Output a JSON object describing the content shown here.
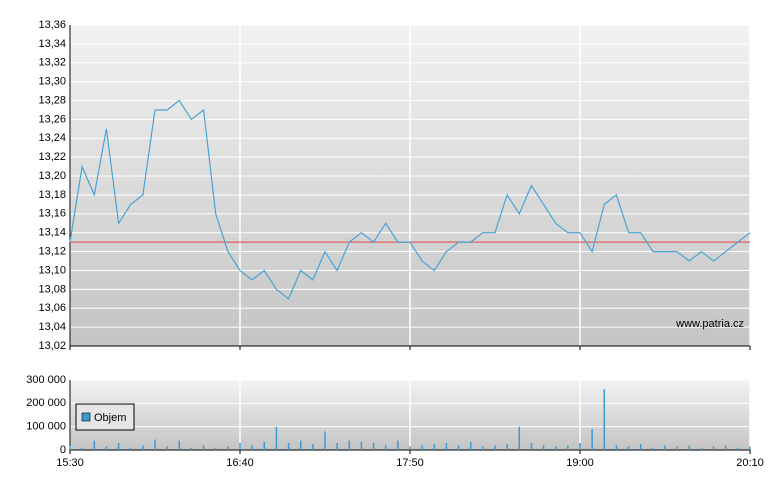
{
  "chart_data": [
    {
      "type": "line",
      "color": "#4aa3d4",
      "reference_value": 13.13,
      "reference_color": "#e06060",
      "annotation": "www.patria.cz",
      "x": [
        "15:30",
        "15:35",
        "15:40",
        "15:45",
        "15:50",
        "15:55",
        "16:00",
        "16:05",
        "16:10",
        "16:15",
        "16:20",
        "16:25",
        "16:30",
        "16:35",
        "16:40",
        "16:45",
        "16:50",
        "16:55",
        "17:00",
        "17:05",
        "17:10",
        "17:15",
        "17:20",
        "17:25",
        "17:30",
        "17:35",
        "17:40",
        "17:45",
        "17:50",
        "17:55",
        "18:00",
        "18:05",
        "18:10",
        "18:15",
        "18:20",
        "18:25",
        "18:30",
        "18:35",
        "18:40",
        "18:45",
        "18:50",
        "18:55",
        "19:00",
        "19:05",
        "19:10",
        "19:15",
        "19:20",
        "19:25",
        "19:30",
        "19:35",
        "19:40",
        "19:45",
        "19:50",
        "19:55",
        "20:00",
        "20:05",
        "20:10"
      ],
      "values": [
        13.13,
        13.21,
        13.18,
        13.25,
        13.15,
        13.17,
        13.18,
        13.27,
        13.27,
        13.28,
        13.26,
        13.27,
        13.16,
        13.12,
        13.1,
        13.09,
        13.1,
        13.08,
        13.07,
        13.1,
        13.09,
        13.12,
        13.1,
        13.13,
        13.14,
        13.13,
        13.15,
        13.13,
        13.13,
        13.11,
        13.1,
        13.12,
        13.13,
        13.13,
        13.14,
        13.14,
        13.18,
        13.16,
        13.19,
        13.17,
        13.15,
        13.14,
        13.14,
        13.12,
        13.17,
        13.18,
        13.14,
        13.14,
        13.12,
        13.12,
        13.12,
        13.11,
        13.12,
        13.11,
        13.12,
        13.13,
        13.14
      ],
      "ylim": [
        13.02,
        13.36
      ],
      "yticks": [
        {
          "value": 13.02,
          "label": "13,02"
        },
        {
          "value": 13.04,
          "label": "13,04"
        },
        {
          "value": 13.06,
          "label": "13,06"
        },
        {
          "value": 13.08,
          "label": "13,08"
        },
        {
          "value": 13.1,
          "label": "13,10"
        },
        {
          "value": 13.12,
          "label": "13,12"
        },
        {
          "value": 13.14,
          "label": "13,14"
        },
        {
          "value": 13.16,
          "label": "13,16"
        },
        {
          "value": 13.18,
          "label": "13,18"
        },
        {
          "value": 13.2,
          "label": "13,20"
        },
        {
          "value": 13.22,
          "label": "13,22"
        },
        {
          "value": 13.24,
          "label": "13,24"
        },
        {
          "value": 13.26,
          "label": "13,26"
        },
        {
          "value": 13.28,
          "label": "13,28"
        },
        {
          "value": 13.3,
          "label": "13,30"
        },
        {
          "value": 13.32,
          "label": "13,32"
        },
        {
          "value": 13.34,
          "label": "13,34"
        },
        {
          "value": 13.36,
          "label": "13,36"
        }
      ],
      "xticks": [
        "15:30",
        "16:40",
        "17:50",
        "19:00",
        "20:10"
      ],
      "grid": true
    },
    {
      "type": "bar",
      "legend": "upper-left",
      "x": [
        "15:30",
        "15:35",
        "15:40",
        "15:45",
        "15:50",
        "15:55",
        "16:00",
        "16:05",
        "16:10",
        "16:15",
        "16:20",
        "16:25",
        "16:30",
        "16:35",
        "16:40",
        "16:45",
        "16:50",
        "16:55",
        "17:00",
        "17:05",
        "17:10",
        "17:15",
        "17:20",
        "17:25",
        "17:30",
        "17:35",
        "17:40",
        "17:45",
        "17:50",
        "17:55",
        "18:00",
        "18:05",
        "18:10",
        "18:15",
        "18:20",
        "18:25",
        "18:30",
        "18:35",
        "18:40",
        "18:45",
        "18:50",
        "18:55",
        "19:00",
        "19:05",
        "19:10",
        "19:15",
        "19:20",
        "19:25",
        "19:30",
        "19:35",
        "19:40",
        "19:45",
        "19:50",
        "19:55",
        "20:00",
        "20:05",
        "20:10"
      ],
      "series": [
        {
          "name": "Objem",
          "color": "#3d9ad1",
          "values": [
            20000,
            10000,
            40000,
            15000,
            30000,
            10000,
            20000,
            45000,
            15000,
            40000,
            10000,
            20000,
            10000,
            15000,
            30000,
            20000,
            35000,
            100000,
            30000,
            40000,
            25000,
            80000,
            30000,
            40000,
            35000,
            30000,
            20000,
            40000,
            15000,
            20000,
            25000,
            30000,
            20000,
            35000,
            15000,
            20000,
            25000,
            100000,
            30000,
            20000,
            15000,
            20000,
            30000,
            90000,
            260000,
            20000,
            15000,
            25000,
            10000,
            20000,
            15000,
            20000,
            10000,
            15000,
            20000,
            10000,
            15000
          ]
        }
      ],
      "ylim": [
        0,
        300000
      ],
      "yticks": [
        0,
        {
          "value": 100000,
          "label": "100 000"
        },
        {
          "value": 200000,
          "label": "200 000"
        },
        {
          "value": 300000,
          "label": "300 000"
        }
      ],
      "grid": true
    }
  ]
}
